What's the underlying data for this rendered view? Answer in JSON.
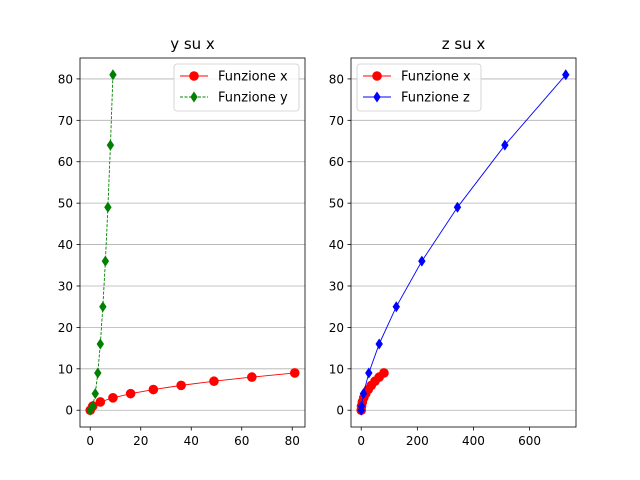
{
  "chart_data": [
    {
      "type": "line",
      "title": "y su x",
      "xlim": [
        -4.05,
        85.05
      ],
      "ylim": [
        -4.05,
        85.05
      ],
      "xticks": [
        0,
        20,
        40,
        60,
        80
      ],
      "yticks": [
        0,
        10,
        20,
        30,
        40,
        50,
        60,
        70,
        80
      ],
      "grid": "y-axis horizontal lines",
      "legend_position": "top-right",
      "series": [
        {
          "name": "Funzione x",
          "color": "#ff0000",
          "marker": "circle",
          "linestyle": "solid",
          "x": [
            0,
            1,
            4,
            9,
            16,
            25,
            36,
            49,
            64,
            81
          ],
          "y": [
            0,
            1,
            2,
            3,
            4,
            5,
            6,
            7,
            8,
            9
          ]
        },
        {
          "name": "Funzione y",
          "color": "#008000",
          "marker": "diamond",
          "linestyle": "dashed",
          "x": [
            0,
            1,
            2,
            3,
            4,
            5,
            6,
            7,
            8,
            9
          ],
          "y": [
            0,
            1,
            4,
            9,
            16,
            25,
            36,
            49,
            64,
            81
          ]
        }
      ]
    },
    {
      "type": "line",
      "title": "z su x",
      "xlim": [
        -36.45,
        765.45
      ],
      "ylim": [
        -4.05,
        85.05
      ],
      "xticks": [
        0,
        200,
        400,
        600
      ],
      "yticks": [
        0,
        10,
        20,
        30,
        40,
        50,
        60,
        70,
        80
      ],
      "grid": "y-axis horizontal lines",
      "legend_position": "top-left",
      "series": [
        {
          "name": "Funzione x",
          "color": "#ff0000",
          "marker": "circle",
          "linestyle": "solid",
          "x": [
            0,
            1,
            4,
            9,
            16,
            25,
            36,
            49,
            64,
            81
          ],
          "y": [
            0,
            1,
            2,
            3,
            4,
            5,
            6,
            7,
            8,
            9
          ]
        },
        {
          "name": "Funzione z",
          "color": "#0000ff",
          "marker": "diamond",
          "linestyle": "solid",
          "x": [
            0,
            1,
            8,
            27,
            64,
            125,
            216,
            343,
            512,
            729
          ],
          "y": [
            0,
            1,
            4,
            9,
            16,
            25,
            36,
            49,
            64,
            81
          ]
        }
      ]
    }
  ]
}
